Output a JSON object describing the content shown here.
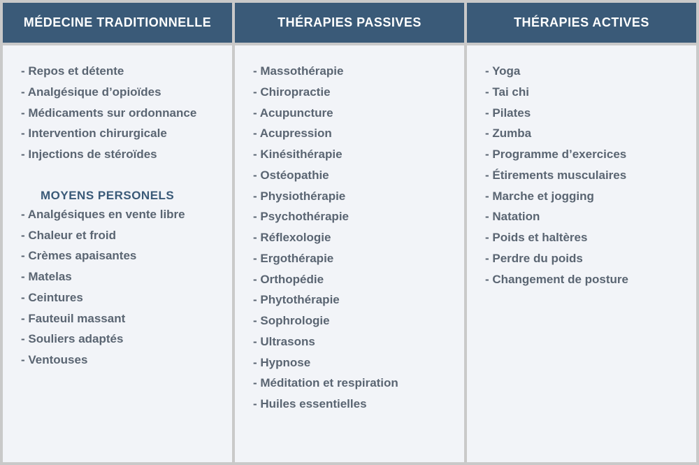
{
  "colors": {
    "header_bg": "#3a5a78",
    "header_text": "#ffffff",
    "body_bg": "#f2f4f8",
    "item_text": "#5a6572",
    "subheading_text": "#3a5a78",
    "page_bg": "#c9c9c9"
  },
  "columns": [
    {
      "header": "MÉDECINE TRADITIONNELLE",
      "sections": [
        {
          "items": [
            "Repos et détente",
            "Analgésique d’opioïdes",
            "Médicaments sur ordonnance",
            "Intervention chirurgicale",
            "Injections de stéroïdes"
          ]
        },
        {
          "subheading": "MOYENS PERSONELS",
          "items": [
            "Analgésiques en vente libre",
            "Chaleur et froid",
            "Crèmes apaisantes",
            "Matelas",
            "Ceintures",
            "Fauteuil massant",
            "Souliers adaptés",
            "Ventouses"
          ]
        }
      ]
    },
    {
      "header": "THÉRAPIES PASSIVES",
      "sections": [
        {
          "items": [
            "Massothérapie",
            "Chiropractie",
            "Acupuncture",
            "Acupression",
            "Kinésithérapie",
            "Ostéopathie",
            "Physiothérapie",
            "Psychothérapie",
            "Réflexologie",
            "Ergothérapie",
            "Orthopédie",
            "Phytothérapie",
            "Sophrologie",
            "Ultrasons",
            "Hypnose",
            "Méditation et respiration",
            "Huiles essentielles"
          ]
        }
      ]
    },
    {
      "header": "THÉRAPIES ACTIVES",
      "sections": [
        {
          "items": [
            "Yoga",
            "Tai chi",
            "Pilates",
            "Zumba",
            "Programme d’exercices",
            "Étirements musculaires",
            "Marche et jogging",
            "Natation",
            "Poids et haltères",
            "Perdre du poids",
            "Changement de posture"
          ]
        }
      ]
    }
  ]
}
